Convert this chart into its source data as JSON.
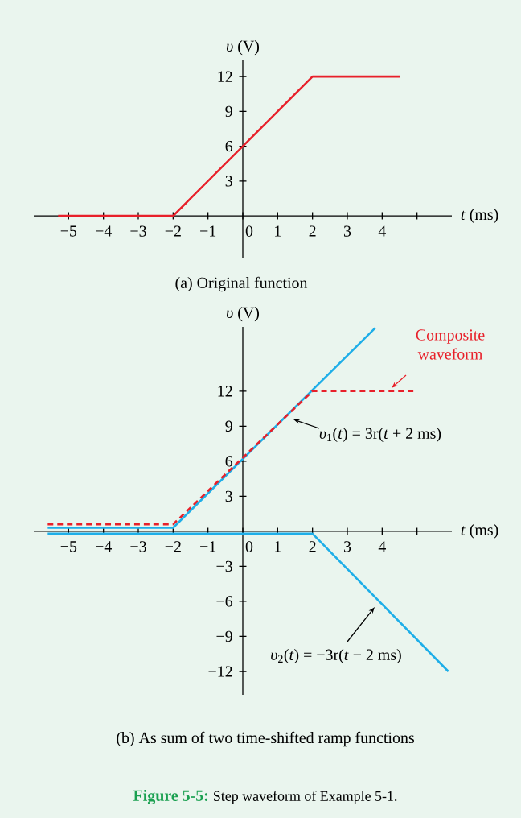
{
  "chart_data": [
    {
      "type": "line",
      "title": "(a) Original function",
      "xlabel": "*t* (ms)",
      "ylabel": "*υ* (V)",
      "xlim": [
        -6,
        6
      ],
      "ylim": [
        -3.6,
        13.4
      ],
      "xticks": [
        {
          "value": -5,
          "label": "−5"
        },
        {
          "value": -4,
          "label": "−4"
        },
        {
          "value": -3,
          "label": "−3"
        },
        {
          "value": -2,
          "label": "−2"
        },
        {
          "value": -1,
          "label": "−1"
        },
        0,
        1,
        2,
        3,
        4,
        {
          "value": 5,
          "label": null
        }
      ],
      "yticks": [
        3,
        6,
        9,
        12
      ],
      "series": [
        {
          "color": "#e8202a",
          "x": [
            -5.3,
            -2,
            2,
            4.5
          ],
          "values": [
            0,
            0,
            12,
            12
          ]
        }
      ]
    },
    {
      "type": "line",
      "title": "(b) As sum of two time-shifted ramp functions",
      "xlabel": "*t* (ms)",
      "ylabel": "*υ* (V)",
      "xlim": [
        -6,
        6
      ],
      "ylim": [
        -14,
        17.5
      ],
      "xticks": [
        {
          "value": -5,
          "label": "−5"
        },
        {
          "value": -4,
          "label": "−4"
        },
        {
          "value": -3,
          "label": "−3"
        },
        {
          "value": -2,
          "label": "−2"
        },
        {
          "value": -1,
          "label": "−1"
        },
        0,
        1,
        2,
        3,
        4,
        {
          "value": 5,
          "label": null
        }
      ],
      "yticks": [
        {
          "value": -12,
          "label": "−12"
        },
        {
          "value": -9,
          "label": "−9"
        },
        {
          "value": -6,
          "label": "−6"
        },
        {
          "value": -3,
          "label": "−3"
        },
        3,
        6,
        9,
        12
      ],
      "series": [
        {
          "name": "*υ*$_{2}$(*t*) = −3r(*t* − 2 ms)",
          "color": "#1eaee8",
          "x": [
            -5.6,
            2,
            5.9
          ],
          "values": [
            -0.2,
            -0.2,
            -12
          ]
        },
        {
          "name": "*υ*$_{1}$(*t*) = 3r(*t* + 2 ms)",
          "color": "#1eaee8",
          "x": [
            -5.6,
            -2,
            3.8
          ],
          "values": [
            0.3,
            0.3,
            17.4
          ]
        },
        {
          "name": "Composite waveform",
          "color": "#e8202a",
          "line_style": "dashed",
          "x": [
            -5.6,
            -2,
            2,
            4.9
          ],
          "values": [
            0.6,
            0.6,
            12,
            12
          ]
        }
      ],
      "annotations": [
        "Figure 5-5:",
        "Step waveform of Example 5-1."
      ]
    }
  ]
}
